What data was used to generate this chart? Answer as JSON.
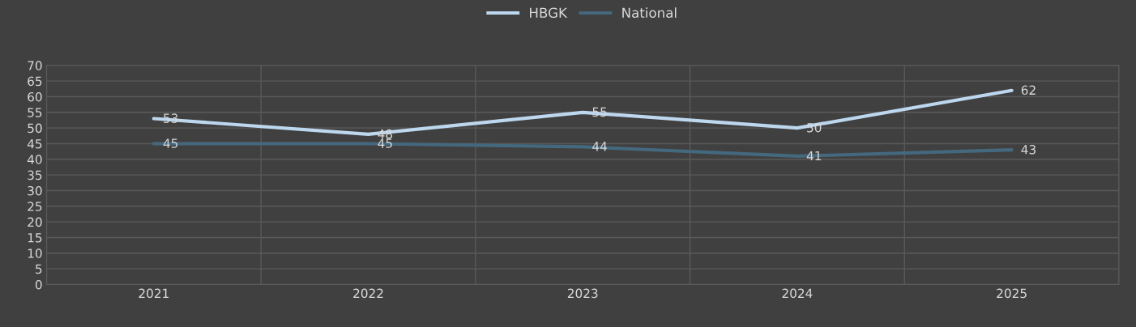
{
  "chart_data": {
    "type": "line",
    "categories": [
      "2021",
      "2022",
      "2023",
      "2024",
      "2025"
    ],
    "series": [
      {
        "name": "HBGK",
        "color": "#bdd7ee",
        "values": [
          53,
          48,
          55,
          50,
          62
        ]
      },
      {
        "name": "National",
        "color": "#44687e",
        "values": [
          45,
          45,
          44,
          41,
          43
        ]
      }
    ],
    "ylim": [
      0,
      70
    ],
    "yticks": [
      0,
      5,
      10,
      15,
      20,
      25,
      30,
      35,
      40,
      45,
      50,
      55,
      60,
      65,
      70
    ],
    "grid": true,
    "legend": "top",
    "data_labels": true,
    "marker": "none",
    "line_style": "solid"
  }
}
